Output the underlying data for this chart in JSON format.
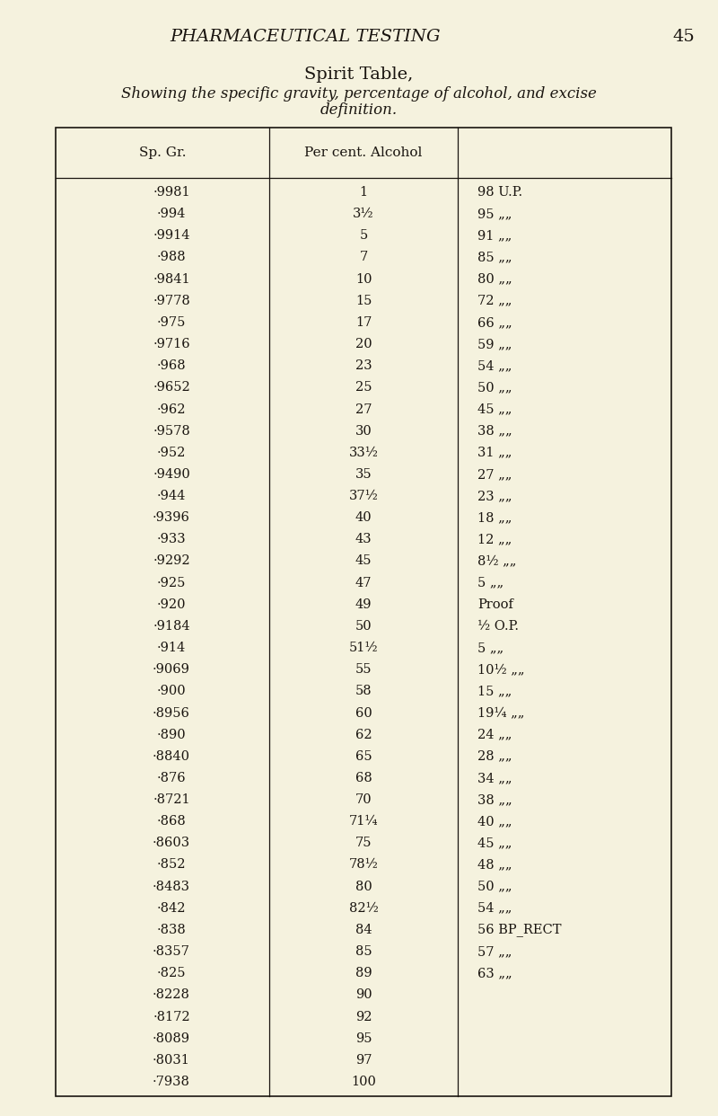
{
  "page_header": "PHARMACEUTICAL TESTING",
  "page_number": "45",
  "title": "Spirit Table,",
  "subtitle_line1": "Showing the specific gravity, percentage of alcohol, and excise",
  "subtitle_line2": "definition.",
  "col1_header": "Sp. Gr.",
  "col2_header": "Per cent. Alcohol",
  "rows": [
    [
      ".9981",
      "1",
      "98 U.P."
    ],
    [
      ".994",
      "3½",
      "95 „„"
    ],
    [
      ".9914",
      "5",
      "91 „„"
    ],
    [
      ".988",
      "7",
      "85 „„"
    ],
    [
      ".9841",
      "10",
      "80 „„"
    ],
    [
      ".9778",
      "15",
      "72 „„"
    ],
    [
      ".975",
      "17",
      "66 „„"
    ],
    [
      ".9716",
      "20",
      "59 „„"
    ],
    [
      ".968",
      "23",
      "54 „„"
    ],
    [
      ".9652",
      "25",
      "50 „„"
    ],
    [
      ".962",
      "27",
      "45 „„"
    ],
    [
      ".9578",
      "30",
      "38 „„"
    ],
    [
      ".952",
      "33½",
      "31 „„"
    ],
    [
      ".9490",
      "35",
      "27 „„"
    ],
    [
      ".944",
      "37½",
      "23 „„"
    ],
    [
      ".9396",
      "40",
      "18 „„"
    ],
    [
      ".933",
      "43",
      "12 „„"
    ],
    [
      ".9292",
      "45",
      "8½ „„"
    ],
    [
      ".925",
      "47",
      "5 „„"
    ],
    [
      ".920",
      "49",
      "Proof"
    ],
    [
      ".9184",
      "50",
      "½ O.P."
    ],
    [
      ".914",
      "51½",
      "5 „„"
    ],
    [
      ".9069",
      "55",
      "10½ „„"
    ],
    [
      ".900",
      "58",
      "15 „„"
    ],
    [
      ".8956",
      "60",
      "19¼ „„"
    ],
    [
      ".890",
      "62",
      "24 „„"
    ],
    [
      ".8840",
      "65",
      "28 „„"
    ],
    [
      ".876",
      "68",
      "34 „„"
    ],
    [
      ".8721",
      "70",
      "38 „„"
    ],
    [
      ".868",
      "71¼",
      "40 „„"
    ],
    [
      ".8603",
      "75",
      "45 „„"
    ],
    [
      ".852",
      "78½",
      "48 „„"
    ],
    [
      ".8483",
      "80",
      "50 „„"
    ],
    [
      ".842",
      "82½",
      "54 „„"
    ],
    [
      ".838",
      "84",
      "56 BP_RECT"
    ],
    [
      ".8357",
      "85",
      "57 „„"
    ],
    [
      ".825",
      "89",
      "63 „„"
    ],
    [
      ".8228",
      "90",
      ""
    ],
    [
      ".8172",
      "92",
      ""
    ],
    [
      ".8089",
      "95",
      ""
    ],
    [
      ".8031",
      "97",
      ""
    ],
    [
      ".7938",
      "100",
      ""
    ]
  ],
  "bg_color": "#f5f2de",
  "text_color": "#1a1510",
  "line_color": "#1a1510"
}
